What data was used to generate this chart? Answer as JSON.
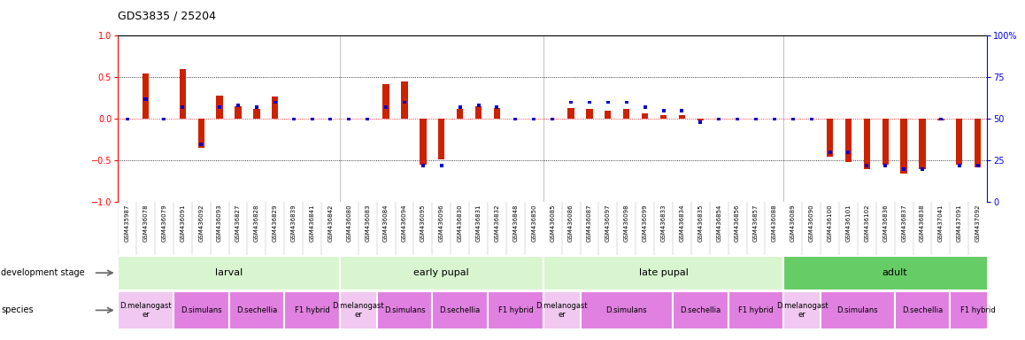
{
  "title": "GDS3835 / 25204",
  "samples": [
    "GSM435987",
    "GSM436078",
    "GSM436079",
    "GSM436091",
    "GSM436092",
    "GSM436093",
    "GSM436827",
    "GSM436828",
    "GSM436829",
    "GSM436839",
    "GSM436841",
    "GSM436842",
    "GSM436080",
    "GSM436083",
    "GSM436084",
    "GSM436094",
    "GSM436095",
    "GSM436096",
    "GSM436830",
    "GSM436831",
    "GSM436832",
    "GSM436848",
    "GSM436850",
    "GSM436085",
    "GSM436086",
    "GSM436087",
    "GSM436097",
    "GSM436098",
    "GSM436099",
    "GSM436833",
    "GSM436834",
    "GSM436835",
    "GSM436854",
    "GSM436856",
    "GSM436857",
    "GSM436088",
    "GSM436089",
    "GSM436090",
    "GSM436100",
    "GSM436101",
    "GSM436102",
    "GSM436836",
    "GSM436837",
    "GSM436838",
    "GSM437041",
    "GSM437091",
    "GSM437092"
  ],
  "log2_ratio": [
    0.0,
    0.55,
    0.0,
    0.6,
    -0.35,
    0.28,
    0.15,
    0.12,
    0.27,
    0.0,
    0.0,
    0.0,
    0.0,
    0.0,
    0.42,
    0.45,
    -0.55,
    -0.48,
    0.12,
    0.15,
    0.13,
    0.0,
    0.0,
    0.0,
    0.13,
    0.12,
    0.1,
    0.12,
    0.07,
    0.05,
    0.05,
    -0.02,
    0.0,
    0.0,
    0.0,
    0.0,
    0.0,
    0.0,
    -0.45,
    -0.52,
    -0.6,
    -0.55,
    -0.65,
    -0.6,
    -0.02,
    -0.55,
    -0.58
  ],
  "percentile": [
    50,
    62,
    50,
    57,
    35,
    57,
    58,
    57,
    60,
    50,
    50,
    50,
    50,
    50,
    57,
    60,
    22,
    22,
    57,
    58,
    57,
    50,
    50,
    50,
    60,
    60,
    60,
    60,
    57,
    55,
    55,
    48,
    50,
    50,
    50,
    50,
    50,
    50,
    30,
    30,
    22,
    22,
    20,
    20,
    50,
    22,
    22
  ],
  "stages": [
    {
      "label": "larval",
      "start": 0,
      "end": 12,
      "color": "#d8f5d0"
    },
    {
      "label": "early pupal",
      "start": 12,
      "end": 23,
      "color": "#d8f5d0"
    },
    {
      "label": "late pupal",
      "start": 23,
      "end": 36,
      "color": "#d8f5d0"
    },
    {
      "label": "adult",
      "start": 36,
      "end": 48,
      "color": "#66cc66"
    }
  ],
  "species_groups": [
    {
      "label": "D.melanogast\ner",
      "start": 0,
      "end": 3,
      "color": "#f0c8f0"
    },
    {
      "label": "D.simulans",
      "start": 3,
      "end": 6,
      "color": "#e080e0"
    },
    {
      "label": "D.sechellia",
      "start": 6,
      "end": 9,
      "color": "#e080e0"
    },
    {
      "label": "F1 hybrid",
      "start": 9,
      "end": 12,
      "color": "#e080e0"
    },
    {
      "label": "D.melanogast\ner",
      "start": 12,
      "end": 14,
      "color": "#f0c8f0"
    },
    {
      "label": "D.simulans",
      "start": 14,
      "end": 17,
      "color": "#e080e0"
    },
    {
      "label": "D.sechellia",
      "start": 17,
      "end": 20,
      "color": "#e080e0"
    },
    {
      "label": "F1 hybrid",
      "start": 20,
      "end": 23,
      "color": "#e080e0"
    },
    {
      "label": "D.melanogast\ner",
      "start": 23,
      "end": 25,
      "color": "#f0c8f0"
    },
    {
      "label": "D.simulans",
      "start": 25,
      "end": 30,
      "color": "#e080e0"
    },
    {
      "label": "D.sechellia",
      "start": 30,
      "end": 33,
      "color": "#e080e0"
    },
    {
      "label": "F1 hybrid",
      "start": 33,
      "end": 36,
      "color": "#e080e0"
    },
    {
      "label": "D.melanogast\ner",
      "start": 36,
      "end": 38,
      "color": "#f0c8f0"
    },
    {
      "label": "D.simulans",
      "start": 38,
      "end": 42,
      "color": "#e080e0"
    },
    {
      "label": "D.sechellia",
      "start": 42,
      "end": 45,
      "color": "#e080e0"
    },
    {
      "label": "F1 hybrid",
      "start": 45,
      "end": 48,
      "color": "#e080e0"
    }
  ],
  "bar_color_red": "#cc2200",
  "bar_color_blue": "#0000cc",
  "ylim_left": [
    -1.0,
    1.0
  ],
  "ylim_right": [
    0,
    100
  ],
  "yticks_left": [
    -1,
    -0.5,
    0,
    0.5,
    1
  ],
  "yticks_right": [
    0,
    25,
    50,
    75,
    100
  ],
  "stage_boundaries": [
    12,
    23,
    36
  ],
  "background_color": "#ffffff",
  "title_fontsize": 9,
  "sample_fontsize": 5.0,
  "stage_fontsize": 8,
  "species_fontsize": 6,
  "legend_fontsize": 7
}
